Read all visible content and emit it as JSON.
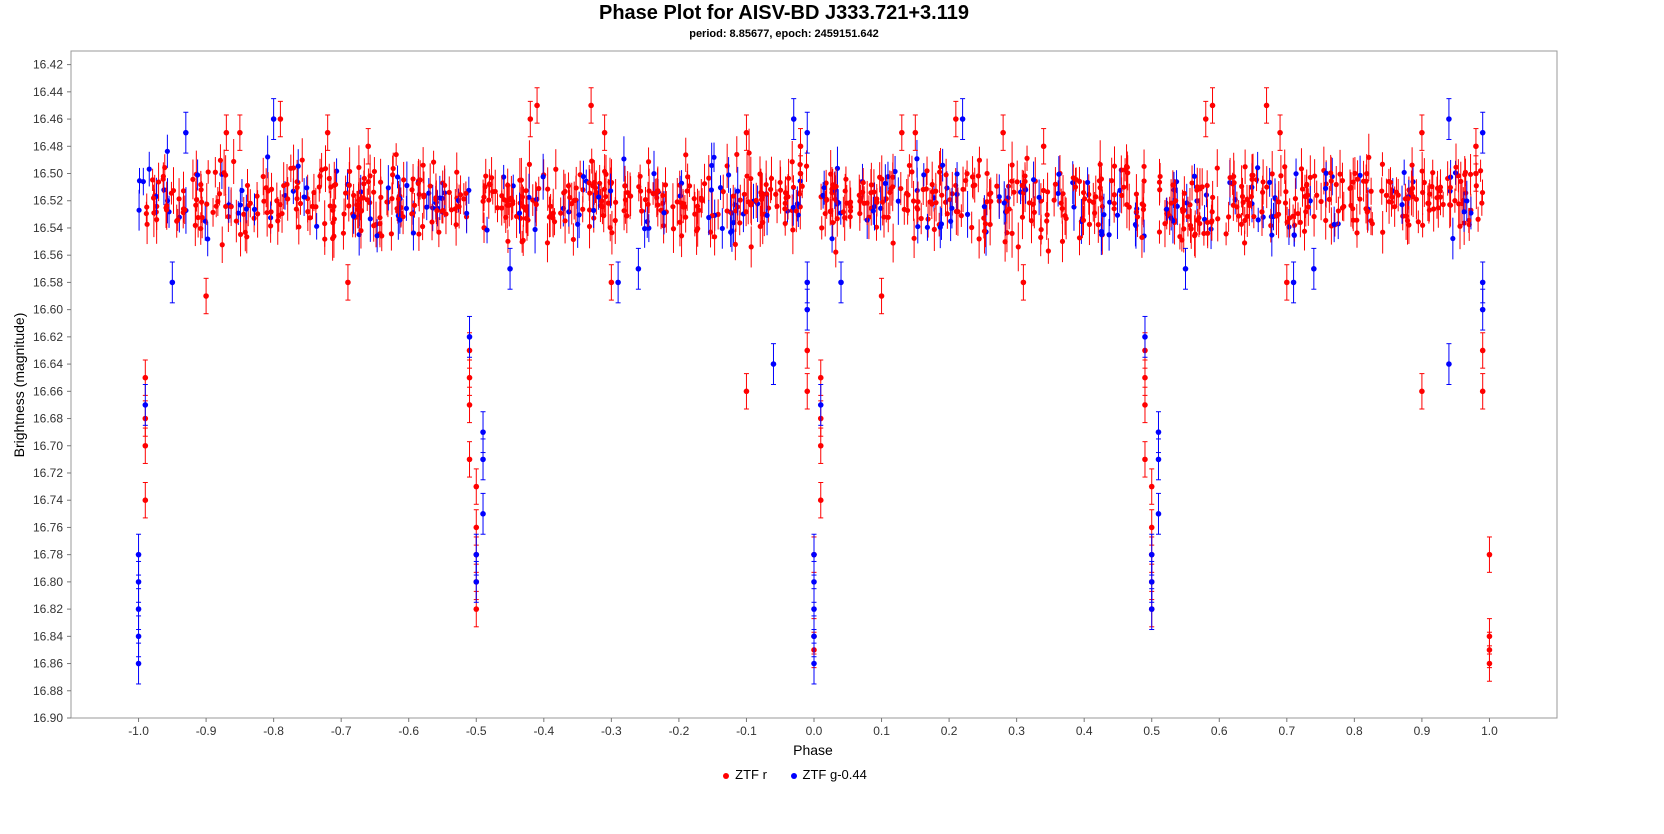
{
  "chart_data": {
    "type": "scatter",
    "title": "Phase Plot for AISV-BD J333.721+3.119",
    "subtitle": "period: 8.85677, epoch: 2459151.642",
    "xlabel": "Phase",
    "ylabel": "Brightness (magnitude)",
    "xlim": [
      -1.1,
      1.1
    ],
    "ylim": [
      16.9,
      16.41
    ],
    "y_inverted": true,
    "grid": false,
    "legend_position": "bottom",
    "x_ticks": [
      -1.0,
      -0.9,
      -0.8,
      -0.7,
      -0.6,
      -0.5,
      -0.4,
      -0.3,
      -0.2,
      -0.1,
      0.0,
      0.1,
      0.2,
      0.3,
      0.4,
      0.5,
      0.6,
      0.7,
      0.8,
      0.9,
      1.0
    ],
    "x_tick_labels": [
      "-1.0",
      "-0.9",
      "-0.8",
      "-0.7",
      "-0.6",
      "-0.5",
      "-0.4",
      "-0.3",
      "-0.2",
      "-0.1",
      "0.0",
      "0.1",
      "0.2",
      "0.3",
      "0.4",
      "0.5",
      "0.6",
      "0.7",
      "0.8",
      "0.9",
      "1.0"
    ],
    "y_ticks": [
      16.42,
      16.44,
      16.46,
      16.48,
      16.5,
      16.52,
      16.54,
      16.56,
      16.58,
      16.6,
      16.62,
      16.64,
      16.66,
      16.68,
      16.7,
      16.72,
      16.74,
      16.76,
      16.78,
      16.8,
      16.82,
      16.84,
      16.86,
      16.88,
      16.9
    ],
    "y_tick_labels": [
      "16.42",
      "16.44",
      "16.46",
      "16.48",
      "16.50",
      "16.52",
      "16.54",
      "16.56",
      "16.58",
      "16.60",
      "16.62",
      "16.64",
      "16.66",
      "16.68",
      "16.70",
      "16.72",
      "16.74",
      "16.76",
      "16.78",
      "16.80",
      "16.82",
      "16.84",
      "16.86",
      "16.88",
      "16.90"
    ],
    "series": [
      {
        "name": "ZTF r",
        "color": "#ff0000",
        "error": 0.013,
        "points": [
          [
            -0.99,
            16.65
          ],
          [
            -0.99,
            16.68
          ],
          [
            -0.99,
            16.7
          ],
          [
            -0.99,
            16.74
          ],
          [
            -0.9,
            16.59
          ],
          [
            -0.87,
            16.47
          ],
          [
            -0.85,
            16.47
          ],
          [
            -0.79,
            16.46
          ],
          [
            -0.72,
            16.47
          ],
          [
            -0.69,
            16.58
          ],
          [
            -0.66,
            16.48
          ],
          [
            -0.51,
            16.63
          ],
          [
            -0.51,
            16.65
          ],
          [
            -0.51,
            16.67
          ],
          [
            -0.51,
            16.71
          ],
          [
            -0.5,
            16.73
          ],
          [
            -0.5,
            16.76
          ],
          [
            -0.5,
            16.78
          ],
          [
            -0.5,
            16.8
          ],
          [
            -0.5,
            16.82
          ],
          [
            -0.41,
            16.45
          ],
          [
            -0.42,
            16.46
          ],
          [
            -0.33,
            16.45
          ],
          [
            -0.31,
            16.47
          ],
          [
            -0.3,
            16.58
          ],
          [
            -0.1,
            16.47
          ],
          [
            -0.1,
            16.66
          ],
          [
            -0.02,
            16.5
          ],
          [
            -0.02,
            16.48
          ],
          [
            -0.01,
            16.63
          ],
          [
            -0.01,
            16.66
          ],
          [
            0.0,
            16.78
          ],
          [
            0.0,
            16.84
          ],
          [
            0.0,
            16.85
          ],
          [
            0.01,
            16.65
          ],
          [
            0.01,
            16.68
          ],
          [
            0.01,
            16.7
          ],
          [
            0.01,
            16.74
          ],
          [
            0.1,
            16.59
          ],
          [
            0.13,
            16.47
          ],
          [
            0.15,
            16.47
          ],
          [
            0.21,
            16.46
          ],
          [
            0.28,
            16.47
          ],
          [
            0.31,
            16.58
          ],
          [
            0.34,
            16.48
          ],
          [
            0.49,
            16.63
          ],
          [
            0.49,
            16.65
          ],
          [
            0.49,
            16.67
          ],
          [
            0.49,
            16.71
          ],
          [
            0.5,
            16.73
          ],
          [
            0.5,
            16.76
          ],
          [
            0.5,
            16.78
          ],
          [
            0.5,
            16.8
          ],
          [
            0.5,
            16.82
          ],
          [
            0.59,
            16.45
          ],
          [
            0.58,
            16.46
          ],
          [
            0.67,
            16.45
          ],
          [
            0.69,
            16.47
          ],
          [
            0.7,
            16.58
          ],
          [
            0.9,
            16.47
          ],
          [
            0.9,
            16.66
          ],
          [
            0.98,
            16.5
          ],
          [
            0.98,
            16.48
          ],
          [
            0.99,
            16.63
          ],
          [
            0.99,
            16.66
          ],
          [
            1.0,
            16.78
          ],
          [
            1.0,
            16.84
          ],
          [
            1.0,
            16.85
          ],
          [
            1.0,
            16.86
          ]
        ]
      },
      {
        "name": "ZTF g-0.44",
        "color": "#0000ff",
        "error": 0.015,
        "points": [
          [
            -1.0,
            16.78
          ],
          [
            -1.0,
            16.8
          ],
          [
            -1.0,
            16.82
          ],
          [
            -1.0,
            16.84
          ],
          [
            -1.0,
            16.86
          ],
          [
            -0.99,
            16.67
          ],
          [
            -0.95,
            16.58
          ],
          [
            -0.93,
            16.47
          ],
          [
            -0.8,
            16.46
          ],
          [
            -0.51,
            16.62
          ],
          [
            -0.49,
            16.69
          ],
          [
            -0.49,
            16.71
          ],
          [
            -0.49,
            16.75
          ],
          [
            -0.5,
            16.78
          ],
          [
            -0.5,
            16.8
          ],
          [
            -0.45,
            16.57
          ],
          [
            -0.29,
            16.58
          ],
          [
            -0.26,
            16.57
          ],
          [
            -0.06,
            16.64
          ],
          [
            -0.03,
            16.46
          ],
          [
            -0.01,
            16.58
          ],
          [
            -0.01,
            16.6
          ],
          [
            -0.01,
            16.47
          ],
          [
            0.0,
            16.78
          ],
          [
            0.0,
            16.8
          ],
          [
            0.0,
            16.82
          ],
          [
            0.0,
            16.84
          ],
          [
            0.0,
            16.86
          ],
          [
            0.01,
            16.67
          ],
          [
            0.04,
            16.58
          ],
          [
            0.22,
            16.46
          ],
          [
            0.49,
            16.62
          ],
          [
            0.51,
            16.69
          ],
          [
            0.51,
            16.71
          ],
          [
            0.51,
            16.75
          ],
          [
            0.5,
            16.78
          ],
          [
            0.5,
            16.8
          ],
          [
            0.5,
            16.82
          ],
          [
            0.55,
            16.57
          ],
          [
            0.71,
            16.58
          ],
          [
            0.74,
            16.57
          ],
          [
            0.94,
            16.64
          ],
          [
            0.94,
            16.46
          ],
          [
            0.99,
            16.47
          ],
          [
            0.99,
            16.58
          ],
          [
            0.99,
            16.6
          ]
        ]
      }
    ]
  }
}
